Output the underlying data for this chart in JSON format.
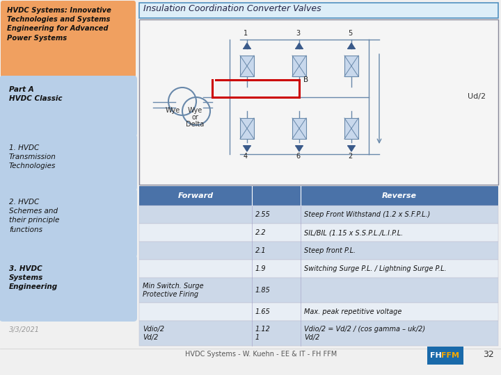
{
  "bg_color": "#f0f0f0",
  "title_text": "HVDC Systems: Innovative\nTechnologies and Systems\nEngineering for Advanced\nPower Systems",
  "title_bg": "#f0a060",
  "sidebar_box_color": "#b8cfe8",
  "sidebar_items": [
    {
      "text": "Part A\nHVDC Classic",
      "bold": true
    },
    {
      "text": "1. HVDC\nTransmission\nTechnologies",
      "bold": false
    },
    {
      "text": "2. HVDC\nSchemes and\ntheir principle\nfunctions",
      "bold": false
    },
    {
      "text": "3. HVDC\nSystems\nEngineering",
      "bold": true
    }
  ],
  "date_text": "3/3/2021",
  "top_title": "Insulation Coordination Converter Valves",
  "top_title_bg": "#ddeef8",
  "top_title_border": "#5090c0",
  "table_header_color": "#4a72a8",
  "table_row_colors": [
    "#ccd8e8",
    "#e8eef5",
    "#ccd8e8",
    "#e8eef5",
    "#ccd8e8",
    "#e8eef5",
    "#ccd8e8"
  ],
  "table_headers": [
    "Forward",
    "",
    "Reverse"
  ],
  "table_rows": [
    [
      "",
      "2.55",
      "Steep Front Withstand (1.2 x S.F.P.L.)"
    ],
    [
      "",
      "2.2",
      "SIL/BIL (1.15 x S.S.P.L./L.I.P.L."
    ],
    [
      "",
      "2.1",
      "Steep front P.L."
    ],
    [
      "",
      "1.9",
      "Switching Surge P.L. / Lightning Surge P.L."
    ],
    [
      "Min Switch. Surge\nProtective Firing",
      "1.85",
      ""
    ],
    [
      "",
      "1.65",
      "Max. peak repetitive voltage"
    ],
    [
      "Vdio/2\nVd/2",
      "1.12\n1",
      "Vdio/2 = Vd/2 / (cos gamma – uk/2)\nVd/2"
    ]
  ],
  "footer_text": "HVDC Systems - W. Kuehn - EE & IT - FH FFM",
  "page_num": "32",
  "ffm_bg": "#1a6aaa",
  "ffm_text_color": "#f5a800",
  "valve_fill": "#c8d8ec",
  "valve_edge": "#6888aa",
  "wire_color": "#6888aa",
  "red_bus": "#cc0000",
  "transformer_color": "#6888aa",
  "diag_bg": "#f5f5f5",
  "diag_border": "#888899"
}
